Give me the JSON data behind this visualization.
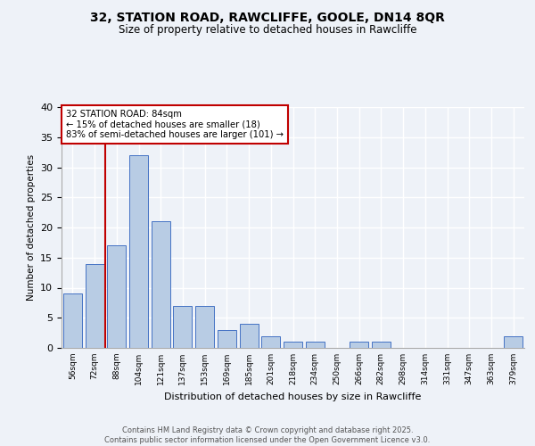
{
  "title_line1": "32, STATION ROAD, RAWCLIFFE, GOOLE, DN14 8QR",
  "title_line2": "Size of property relative to detached houses in Rawcliffe",
  "xlabel": "Distribution of detached houses by size in Rawcliffe",
  "ylabel": "Number of detached properties",
  "categories": [
    "56sqm",
    "72sqm",
    "88sqm",
    "104sqm",
    "121sqm",
    "137sqm",
    "153sqm",
    "169sqm",
    "185sqm",
    "201sqm",
    "218sqm",
    "234sqm",
    "250sqm",
    "266sqm",
    "282sqm",
    "298sqm",
    "314sqm",
    "331sqm",
    "347sqm",
    "363sqm",
    "379sqm"
  ],
  "values": [
    9,
    14,
    17,
    32,
    21,
    7,
    7,
    3,
    4,
    2,
    1,
    1,
    0,
    1,
    1,
    0,
    0,
    0,
    0,
    0,
    2
  ],
  "bar_color": "#b8cce4",
  "bar_edge_color": "#4472c4",
  "highlight_line_color": "#c00000",
  "annotation_text": "32 STATION ROAD: 84sqm\n← 15% of detached houses are smaller (18)\n83% of semi-detached houses are larger (101) →",
  "annotation_box_color": "#c00000",
  "ylim": [
    0,
    40
  ],
  "yticks": [
    0,
    5,
    10,
    15,
    20,
    25,
    30,
    35,
    40
  ],
  "footer_text": "Contains HM Land Registry data © Crown copyright and database right 2025.\nContains public sector information licensed under the Open Government Licence v3.0.",
  "background_color": "#eef2f8",
  "grid_color": "#ffffff"
}
